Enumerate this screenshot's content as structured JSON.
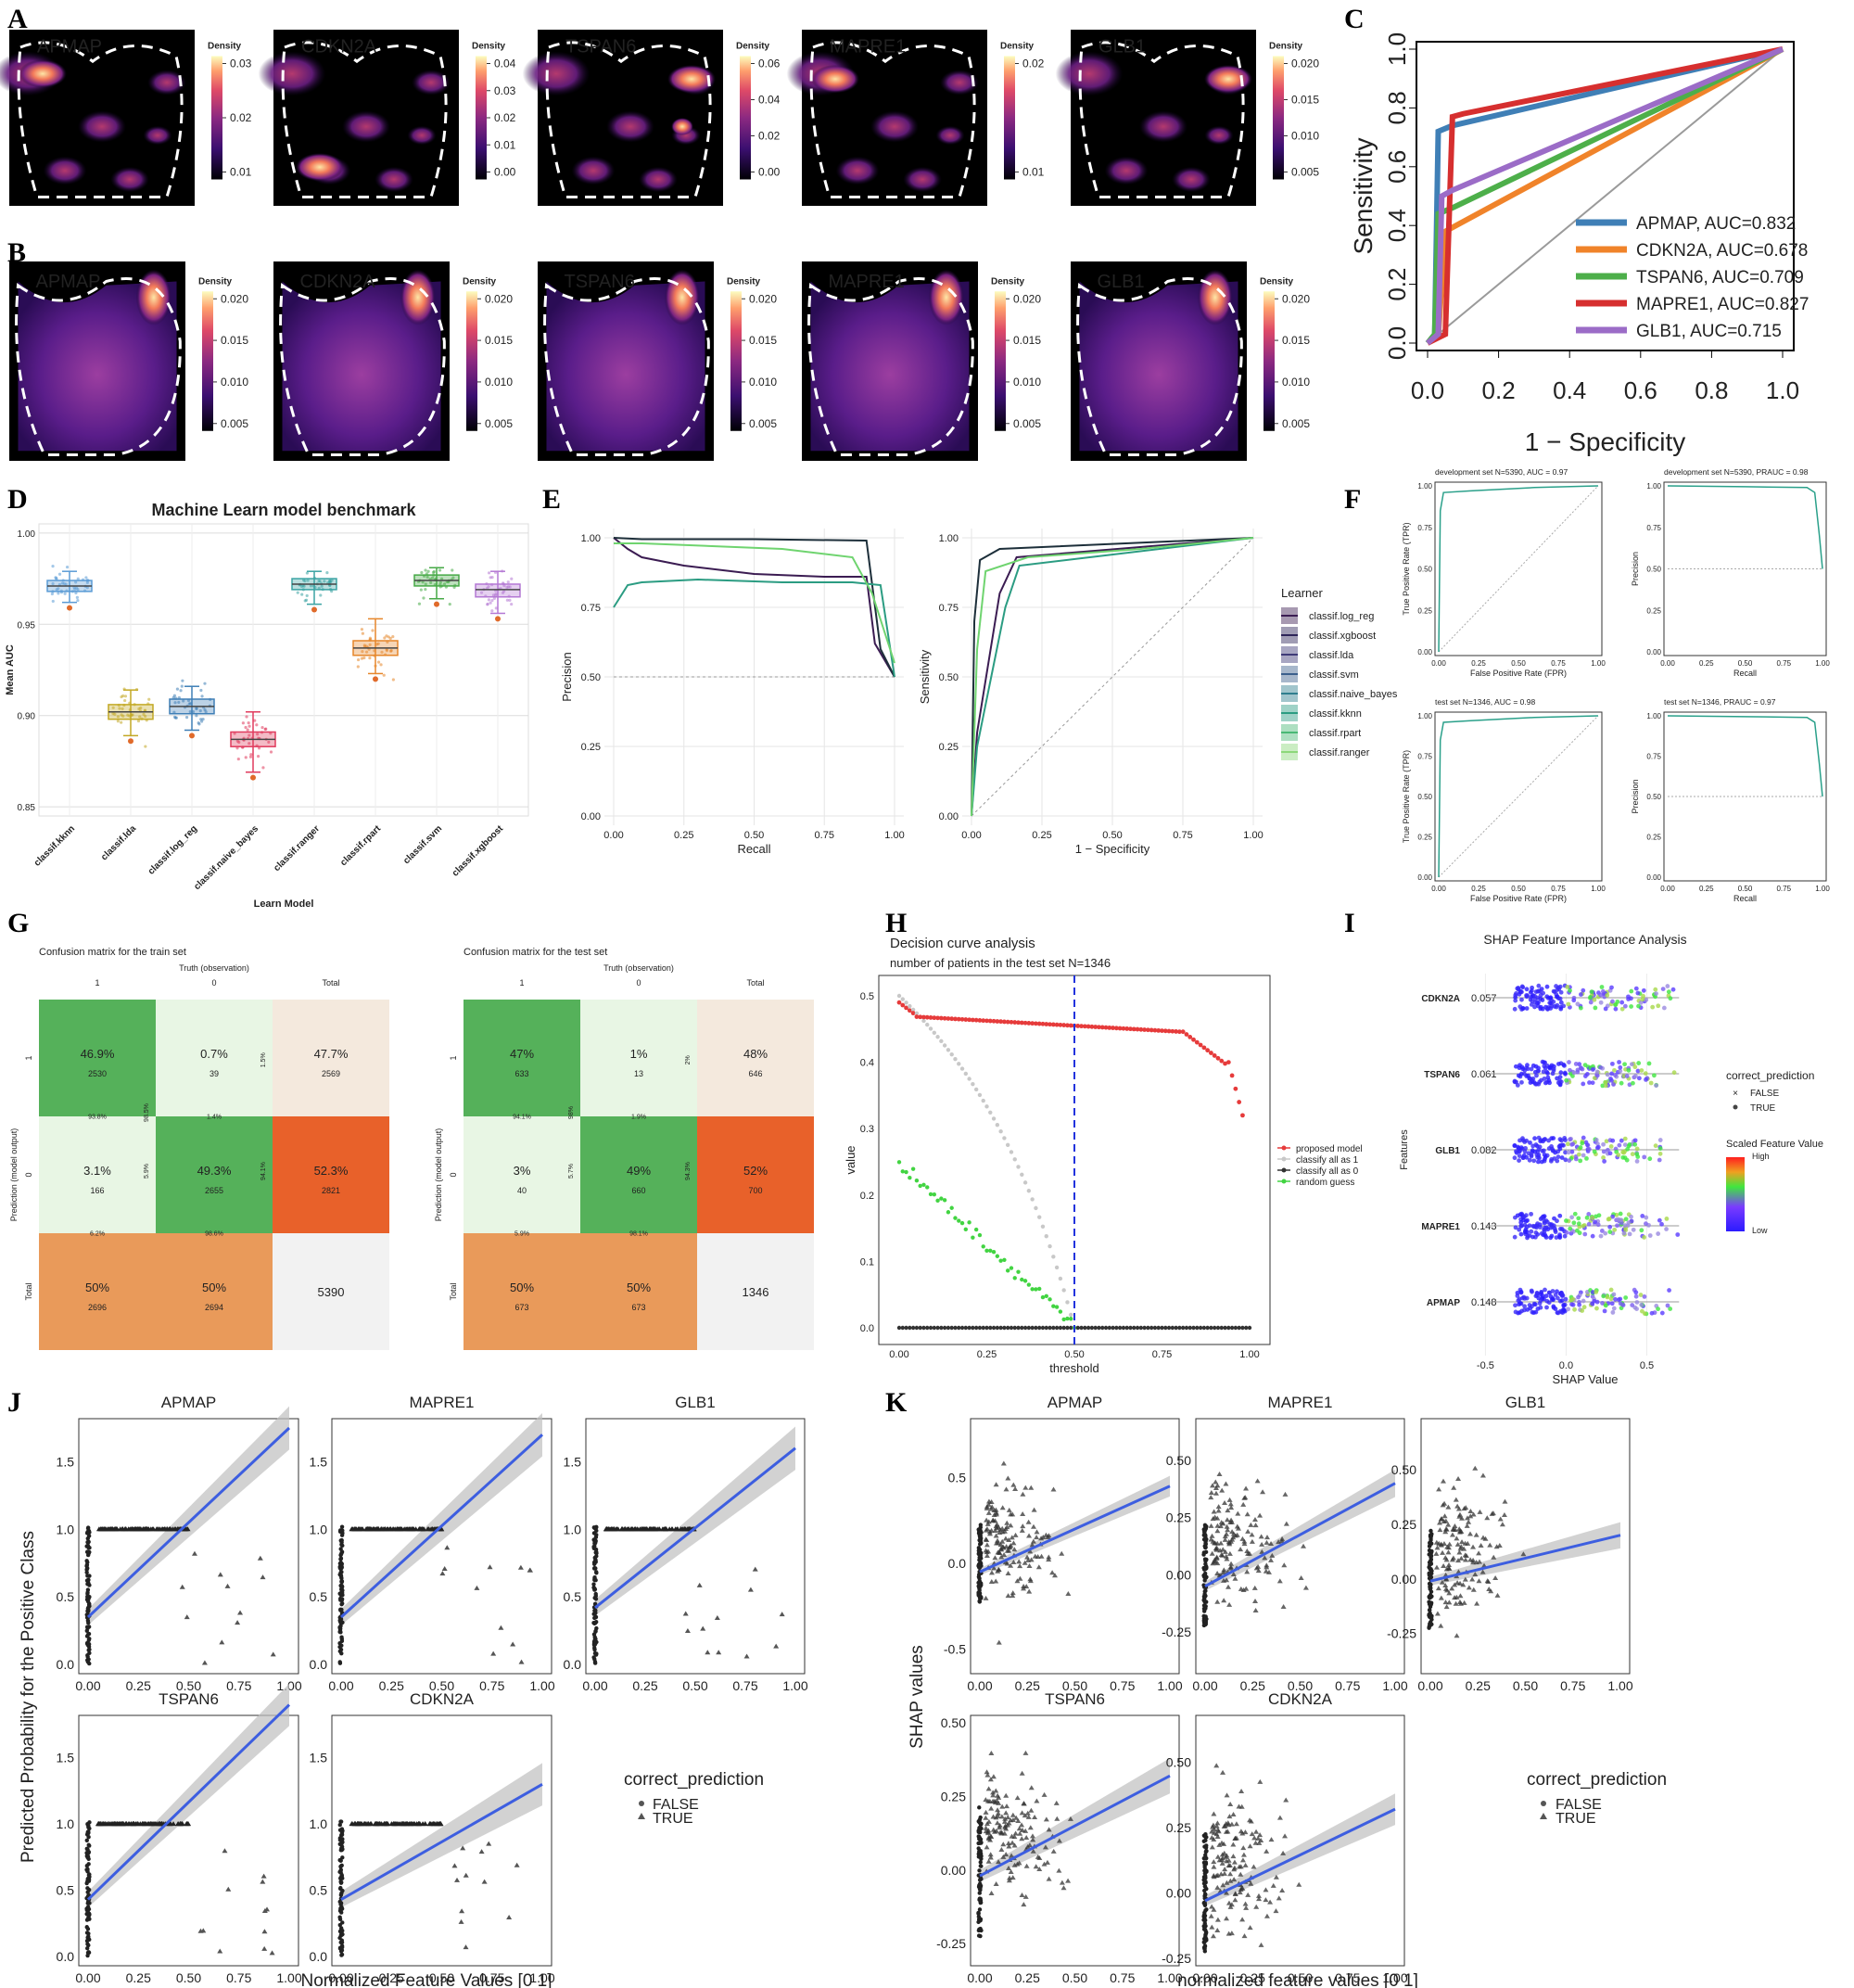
{
  "panel_labels": [
    "A",
    "B",
    "C",
    "D",
    "E",
    "F",
    "G",
    "H",
    "I",
    "J",
    "K"
  ],
  "density_legend_title": "Density",
  "panel_A": [
    {
      "gene": "APMAP",
      "ticks": [
        "0.03",
        "0.02",
        "0.01"
      ]
    },
    {
      "gene": "CDKN2A",
      "ticks": [
        "0.04",
        "0.03",
        "0.02",
        "0.01",
        "0.00"
      ]
    },
    {
      "gene": "TSPAN6",
      "ticks": [
        "0.06",
        "0.04",
        "0.02",
        "0.00"
      ]
    },
    {
      "gene": "MAPRE1",
      "ticks": [
        "0.02",
        "0.01"
      ]
    },
    {
      "gene": "GLB1",
      "ticks": [
        "0.020",
        "0.015",
        "0.010",
        "0.005"
      ]
    }
  ],
  "panel_B": [
    {
      "gene": "APMAP",
      "ticks": [
        "0.020",
        "0.015",
        "0.010",
        "0.005"
      ]
    },
    {
      "gene": "CDKN2A",
      "ticks": [
        "0.020",
        "0.015",
        "0.010",
        "0.005"
      ]
    },
    {
      "gene": "TSPAN6",
      "ticks": [
        "0.020",
        "0.015",
        "0.010",
        "0.005"
      ]
    },
    {
      "gene": "MAPRE1",
      "ticks": [
        "0.020",
        "0.015",
        "0.010",
        "0.005"
      ]
    },
    {
      "gene": "GLB1",
      "ticks": [
        "0.020",
        "0.015",
        "0.010",
        "0.005"
      ]
    }
  ],
  "chart_data": [
    {
      "panel": "C",
      "type": "line",
      "xlabel": "1 − Specificity",
      "ylabel": "Sensitivity",
      "xticks": [
        "0.0",
        "0.2",
        "0.4",
        "0.6",
        "0.8",
        "1.0"
      ],
      "yticks": [
        "0.0",
        "0.2",
        "0.4",
        "0.6",
        "0.8",
        "1.0"
      ],
      "xlim": [
        0,
        1
      ],
      "ylim": [
        0,
        1
      ],
      "legend": "bottom-right",
      "series": [
        {
          "name": "APMAP, AUC=0.832",
          "color": "#3f7fb6",
          "x": [
            0,
            0.02,
            0.03,
            0.07,
            1
          ],
          "y": [
            0,
            0.02,
            0.72,
            0.74,
            1
          ]
        },
        {
          "name": "CDKN2A, AUC=0.678",
          "color": "#f0832a",
          "x": [
            0,
            0.03,
            0.05,
            0.08,
            1
          ],
          "y": [
            0,
            0.02,
            0.38,
            0.4,
            1
          ]
        },
        {
          "name": "TSPAN6, AUC=0.709",
          "color": "#4daf4a",
          "x": [
            0,
            0.02,
            0.03,
            0.07,
            1
          ],
          "y": [
            0,
            0.03,
            0.44,
            0.46,
            1
          ]
        },
        {
          "name": "MAPRE1, AUC=0.827",
          "color": "#d62f2f",
          "x": [
            0,
            0.05,
            0.07,
            0.1,
            1
          ],
          "y": [
            0,
            0.03,
            0.77,
            0.78,
            1
          ]
        },
        {
          "name": "GLB1, AUC=0.715",
          "color": "#9b6cc7",
          "x": [
            0,
            0.03,
            0.04,
            0.07,
            1
          ],
          "y": [
            0,
            0.03,
            0.5,
            0.52,
            1
          ]
        }
      ]
    },
    {
      "panel": "D",
      "type": "box",
      "title": "Machine Learn model benchmark",
      "xlabel": "Learn Model",
      "ylabel": "Mean AUC",
      "yticks": [
        "0.85",
        "0.90",
        "0.95",
        "1.00"
      ],
      "ylim": [
        0.845,
        1.005
      ],
      "categories": [
        "classif.kknn",
        "classif.lda",
        "classif.log_reg",
        "classif.naive_bayes",
        "classif.ranger",
        "classif.rpart",
        "classif.svm",
        "classif.xgboost"
      ],
      "boxes": [
        {
          "q1": 0.968,
          "median": 0.971,
          "q3": 0.974,
          "min": 0.962,
          "max": 0.979,
          "color": "#5a9bd5"
        },
        {
          "q1": 0.898,
          "median": 0.902,
          "q3": 0.906,
          "min": 0.889,
          "max": 0.914,
          "color": "#c2a824"
        },
        {
          "q1": 0.901,
          "median": 0.905,
          "q3": 0.909,
          "min": 0.892,
          "max": 0.916,
          "color": "#3f7fb6"
        },
        {
          "q1": 0.883,
          "median": 0.887,
          "q3": 0.891,
          "min": 0.869,
          "max": 0.902,
          "color": "#e03b5d"
        },
        {
          "q1": 0.969,
          "median": 0.972,
          "q3": 0.975,
          "min": 0.961,
          "max": 0.979,
          "color": "#3aa3a3"
        },
        {
          "q1": 0.933,
          "median": 0.937,
          "q3": 0.941,
          "min": 0.923,
          "max": 0.953,
          "color": "#e6862a"
        },
        {
          "q1": 0.971,
          "median": 0.974,
          "q3": 0.977,
          "min": 0.964,
          "max": 0.981,
          "color": "#46a946"
        },
        {
          "q1": 0.965,
          "median": 0.969,
          "q3": 0.972,
          "min": 0.956,
          "max": 0.979,
          "color": "#b478d4"
        }
      ]
    },
    {
      "panel": "E-left",
      "type": "line",
      "xlabel": "Recall",
      "ylabel": "Precision",
      "xticks": [
        "0.00",
        "0.25",
        "0.50",
        "0.75",
        "1.00"
      ],
      "yticks": [
        "0.00",
        "0.25",
        "0.50",
        "0.75",
        "1.00"
      ],
      "xlim": [
        0,
        1
      ],
      "ylim": [
        0,
        1
      ],
      "series": [
        {
          "name": "classif.log_reg",
          "color": "#3b1c52",
          "x": [
            0,
            0.05,
            0.1,
            0.25,
            0.5,
            0.75,
            0.9,
            0.93,
            1
          ],
          "y": [
            1,
            0.96,
            0.93,
            0.9,
            0.87,
            0.86,
            0.86,
            0.62,
            0.5
          ]
        },
        {
          "name": "classif.xgboost",
          "color": "#1d2f3a",
          "x": [
            0,
            0.1,
            0.5,
            0.9,
            0.95,
            1
          ],
          "y": [
            1,
            0.995,
            0.995,
            0.99,
            0.6,
            0.5
          ]
        },
        {
          "name": "classif.kknn",
          "color": "#2b9c82",
          "x": [
            0,
            0.05,
            0.1,
            0.3,
            0.6,
            0.85,
            0.95,
            1
          ],
          "y": [
            0.75,
            0.83,
            0.84,
            0.85,
            0.84,
            0.84,
            0.83,
            0.5
          ]
        },
        {
          "name": "classif.ranger",
          "color": "#6fd46f",
          "x": [
            0,
            0.1,
            0.6,
            0.85,
            0.92,
            1
          ],
          "y": [
            0.98,
            0.98,
            0.96,
            0.93,
            0.8,
            0.55
          ]
        }
      ]
    },
    {
      "panel": "E-right",
      "type": "line",
      "xlabel": "1 − Specificity",
      "ylabel": "Sensitivity",
      "xticks": [
        "0.00",
        "0.25",
        "0.50",
        "0.75",
        "1.00"
      ],
      "yticks": [
        "0.00",
        "0.25",
        "0.50",
        "0.75",
        "1.00"
      ],
      "xlim": [
        0,
        1
      ],
      "ylim": [
        0,
        1
      ],
      "legend_title": "Learner",
      "legend": [
        {
          "name": "classif.log_reg",
          "color": "#3b1c52"
        },
        {
          "name": "classif.xgboost",
          "color": "#2d2458"
        },
        {
          "name": "classif.lda",
          "color": "#3f3a78"
        },
        {
          "name": "classif.svm",
          "color": "#3b5f8c"
        },
        {
          "name": "classif.naive_bayes",
          "color": "#2f7e8e"
        },
        {
          "name": "classif.kknn",
          "color": "#2b9c82"
        },
        {
          "name": "classif.rpart",
          "color": "#49b875"
        },
        {
          "name": "classif.ranger",
          "color": "#8cd87a"
        }
      ],
      "series": [
        {
          "name": "classif.xgboost",
          "color": "#1d2f3a",
          "x": [
            0,
            0.01,
            0.03,
            0.1,
            1
          ],
          "y": [
            0,
            0.7,
            0.92,
            0.96,
            1
          ]
        },
        {
          "name": "classif.log_reg",
          "color": "#3b1c52",
          "x": [
            0,
            0.02,
            0.06,
            0.1,
            0.16,
            1
          ],
          "y": [
            0,
            0.3,
            0.55,
            0.8,
            0.93,
            1
          ]
        },
        {
          "name": "classif.kknn",
          "color": "#2b9c82",
          "x": [
            0,
            0.02,
            0.07,
            0.12,
            0.17,
            1
          ],
          "y": [
            0,
            0.25,
            0.5,
            0.75,
            0.9,
            1
          ]
        },
        {
          "name": "classif.ranger",
          "color": "#6fd46f",
          "x": [
            0,
            0.02,
            0.05,
            0.2,
            0.6,
            1
          ],
          "y": [
            0,
            0.6,
            0.88,
            0.93,
            0.96,
            1
          ]
        }
      ]
    },
    {
      "panel": "F",
      "type": "line",
      "subplots": [
        {
          "title": "development set N=5390, AUC = 0.97",
          "xlabel": "False Positive Rate (FPR)",
          "ylabel": "True Positive Rate (TPR)",
          "kind": "roc"
        },
        {
          "title": "development set N=5390, PRAUC = 0.98",
          "xlabel": "Recall",
          "ylabel": "Precision",
          "kind": "pr"
        },
        {
          "title": "test set N=1346, AUC = 0.98",
          "xlabel": "False Positive Rate (FPR)",
          "ylabel": "True Positive Rate (TPR)",
          "kind": "roc"
        },
        {
          "title": "test set N=1346, PRAUC = 0.97",
          "xlabel": "Recall",
          "ylabel": "Precision",
          "kind": "pr"
        }
      ],
      "xticks": [
        "0.00",
        "0.25",
        "0.50",
        "0.75",
        "1.00"
      ],
      "yticks": [
        "0.00",
        "0.25",
        "0.50",
        "0.75",
        "1.00"
      ]
    },
    {
      "panel": "G",
      "type": "table",
      "truth_label": "Truth (observation)",
      "pred_label": "Prediction (model output)",
      "col_labels": [
        "1",
        "0",
        "Total"
      ],
      "row_labels": [
        "1",
        "0",
        "Total"
      ],
      "matrices": [
        {
          "title": "Confusion matrix for the train set",
          "cells": [
            [
              "46.9%",
              "2530"
            ],
            [
              "0.7%",
              "39"
            ],
            [
              "47.7%",
              "2569"
            ],
            [
              "3.1%",
              "166"
            ],
            [
              "49.3%",
              "2655"
            ],
            [
              "52.3%",
              "2821"
            ],
            [
              "50%",
              "2696"
            ],
            [
              "50%",
              "2694"
            ],
            [
              "5390",
              ""
            ]
          ],
          "small": [
            "98.5%",
            "1.5%",
            "93.8%",
            "1.4%",
            "5.9%",
            "94.1%",
            "6.2%",
            "98.6%"
          ]
        },
        {
          "title": "Confusion matrix for the test set",
          "cells": [
            [
              "47%",
              "633"
            ],
            [
              "1%",
              "13"
            ],
            [
              "48%",
              "646"
            ],
            [
              "3%",
              "40"
            ],
            [
              "49%",
              "660"
            ],
            [
              "52%",
              "700"
            ],
            [
              "50%",
              "673"
            ],
            [
              "50%",
              "673"
            ],
            [
              "1346",
              ""
            ]
          ],
          "small": [
            "98%",
            "2%",
            "94.1%",
            "1.9%",
            "5.7%",
            "94.3%",
            "5.9%",
            "98.1%"
          ]
        }
      ]
    },
    {
      "panel": "H",
      "type": "line",
      "title": "Decision curve analysis",
      "subtitle": "number of patients in the test set N=1346",
      "xlabel": "threshold",
      "ylabel": "value",
      "xticks": [
        "0.00",
        "0.25",
        "0.50",
        "0.75",
        "1.00"
      ],
      "yticks": [
        "0.0",
        "0.1",
        "0.2",
        "0.3",
        "0.4",
        "0.5"
      ],
      "xlim": [
        0,
        1
      ],
      "ylim": [
        0,
        0.5
      ],
      "vline": 0.5,
      "legend": [
        {
          "name": "proposed model",
          "color": "#e63b3b"
        },
        {
          "name": "classify all as 1",
          "color": "#c8c8c8"
        },
        {
          "name": "classify all as 0",
          "color": "#333333"
        },
        {
          "name": "random guess",
          "color": "#42d442"
        }
      ]
    },
    {
      "panel": "I",
      "type": "scatter",
      "title": "SHAP Feature Importance Analysis",
      "xlabel": "SHAP Value",
      "ylabel": "Features",
      "xticks": [
        "-0.5",
        "0.0",
        "0.5"
      ],
      "xlim": [
        -0.6,
        0.75
      ],
      "features": [
        {
          "name": "CDKN2A",
          "value": "0.057"
        },
        {
          "name": "TSPAN6",
          "value": "0.061"
        },
        {
          "name": "GLB1",
          "value": "0.082"
        },
        {
          "name": "MAPRE1",
          "value": "0.143"
        },
        {
          "name": "APMAP",
          "value": "0.148"
        }
      ],
      "legend_title": "correct_prediction",
      "legend_items": [
        "FALSE",
        "TRUE"
      ],
      "colorbar_title": "Scaled Feature Value",
      "colorbar_high": "High",
      "colorbar_low": "Low"
    },
    {
      "panel": "J",
      "type": "scatter",
      "xlabel": "Normalized Feature Values [0 1]",
      "ylabel": "Predicted Probability for the Positive Class",
      "xticks": [
        "0.00",
        "0.25",
        "0.50",
        "0.75",
        "1.00"
      ],
      "yticks": [
        "0.0",
        "0.5",
        "1.0",
        "1.5"
      ],
      "subplots": [
        {
          "title": "APMAP",
          "fit": [
            0.35,
            1.75
          ]
        },
        {
          "title": "MAPRE1",
          "fit": [
            0.35,
            1.7
          ]
        },
        {
          "title": "GLB1",
          "fit": [
            0.42,
            1.6
          ]
        },
        {
          "title": "TSPAN6",
          "fit": [
            0.43,
            1.9
          ]
        },
        {
          "title": "CDKN2A",
          "fit": [
            0.43,
            1.3
          ]
        }
      ],
      "legend_title": "correct_prediction",
      "legend_items": [
        "FALSE",
        "TRUE"
      ]
    },
    {
      "panel": "K",
      "type": "scatter",
      "xlabel": "normalized feature values [0 1]",
      "ylabel": "SHAP values",
      "xticks": [
        "0.00",
        "0.25",
        "0.50",
        "0.75",
        "1.00"
      ],
      "subplots": [
        {
          "title": "APMAP",
          "yticks": [
            "-0.5",
            "0.0",
            "0.5"
          ],
          "ylim": [
            -0.6,
            0.8
          ],
          "fit": [
            -0.05,
            0.45
          ]
        },
        {
          "title": "MAPRE1",
          "yticks": [
            "-0.25",
            "0.00",
            "0.25",
            "0.50"
          ],
          "ylim": [
            -0.4,
            0.65
          ],
          "fit": [
            -0.05,
            0.4
          ]
        },
        {
          "title": "GLB1",
          "yticks": [
            "-0.25",
            "0.00",
            "0.25",
            "0.50"
          ],
          "ylim": [
            -0.4,
            0.7
          ],
          "fit": [
            -0.01,
            0.2
          ]
        },
        {
          "title": "TSPAN6",
          "yticks": [
            "-0.25",
            "0.00",
            "0.25",
            "0.50"
          ],
          "ylim": [
            -0.3,
            0.5
          ],
          "fit": [
            -0.02,
            0.32
          ]
        },
        {
          "title": "CDKN2A",
          "yticks": [
            "-0.25",
            "0.00",
            "0.25",
            "0.50"
          ],
          "ylim": [
            -0.25,
            0.65
          ],
          "fit": [
            -0.03,
            0.32
          ]
        }
      ],
      "legend_title": "correct_prediction",
      "legend_items": [
        "FALSE",
        "TRUE"
      ]
    }
  ]
}
